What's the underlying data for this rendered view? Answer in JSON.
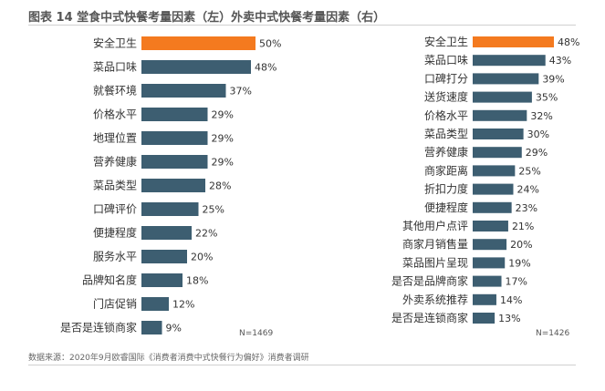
{
  "page": {
    "title": "图表 14 堂食中式快餐考量因素（左）外卖中式快餐考量因素（右）",
    "source": "数据来源：2020年9月欧睿国际《消费者消费中式快餐行为偏好》消费者调研"
  },
  "colors": {
    "highlight": "#F47A1F",
    "bar": "#3D5E71",
    "text": "#333333",
    "note": "#555555"
  },
  "chart_data": [
    {
      "type": "bar",
      "orientation": "horizontal",
      "categories": [
        "安全卫生",
        "菜品口味",
        "就餐环境",
        "价格水平",
        "地理位置",
        "营养健康",
        "菜品类型",
        "口碑评价",
        "便捷程度",
        "服务水平",
        "品牌知名度",
        "门店促销",
        "是否是连锁商家"
      ],
      "values": [
        50,
        48,
        37,
        29,
        29,
        29,
        28,
        25,
        22,
        20,
        18,
        12,
        9
      ],
      "value_labels": [
        "50%",
        "48%",
        "37%",
        "29%",
        "29%",
        "29%",
        "28%",
        "25%",
        "22%",
        "20%",
        "18%",
        "12%",
        "9%"
      ],
      "unit": "%",
      "highlight_index": 0,
      "note": "N=1469",
      "xlim": [
        0,
        50
      ]
    },
    {
      "type": "bar",
      "orientation": "horizontal",
      "categories": [
        "安全卫生",
        "菜品口味",
        "口碑打分",
        "送货速度",
        "价格水平",
        "菜品类型",
        "营养健康",
        "商家距离",
        "折扣力度",
        "便捷程度",
        "其他用户点评",
        "商家月销售量",
        "菜品图片呈现",
        "是否是品牌商家",
        "外卖系统推荐",
        "是否是连锁商家"
      ],
      "values": [
        48,
        43,
        39,
        35,
        32,
        30,
        29,
        25,
        24,
        23,
        21,
        20,
        19,
        17,
        14,
        13
      ],
      "value_labels": [
        "48%",
        "43%",
        "39%",
        "35%",
        "32%",
        "30%",
        "29%",
        "25%",
        "24%",
        "23%",
        "21%",
        "20%",
        "19%",
        "17%",
        "14%",
        "13%"
      ],
      "unit": "%",
      "highlight_index": 0,
      "note": "N=1426",
      "xlim": [
        0,
        48
      ]
    }
  ]
}
